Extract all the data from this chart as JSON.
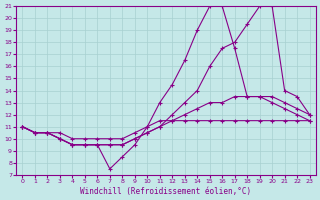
{
  "xlabel": "Windchill (Refroidissement éolien,°C)",
  "xlim": [
    -0.5,
    23.5
  ],
  "ylim": [
    7,
    21
  ],
  "yticks": [
    7,
    8,
    9,
    10,
    11,
    12,
    13,
    14,
    15,
    16,
    17,
    18,
    19,
    20,
    21
  ],
  "xticks": [
    0,
    1,
    2,
    3,
    4,
    5,
    6,
    7,
    8,
    9,
    10,
    11,
    12,
    13,
    14,
    15,
    16,
    17,
    18,
    19,
    20,
    21,
    22,
    23
  ],
  "background_color": "#c5e8e8",
  "grid_color": "#a8d0d0",
  "line_color": "#880088",
  "lines": [
    [
      11,
      10.5,
      10.5,
      10.5,
      10,
      10,
      10,
      10,
      10,
      10.5,
      11,
      11.5,
      11.5,
      11.5,
      11.5,
      11.5,
      11.5,
      11.5,
      11.5,
      11.5,
      11.5,
      11.5,
      11.5,
      11.5
    ],
    [
      11,
      10.5,
      10.5,
      10,
      9.5,
      9.5,
      9.5,
      9.5,
      9.5,
      10,
      10.5,
      11,
      11.5,
      12,
      12.5,
      13,
      13,
      13.5,
      13.5,
      13.5,
      13.5,
      13,
      12.5,
      12
    ],
    [
      11,
      10.5,
      10.5,
      10,
      9.5,
      9.5,
      9.5,
      9.5,
      9.5,
      10,
      10.5,
      11,
      12,
      13,
      14,
      16,
      17.5,
      18,
      19.5,
      21,
      21,
      14,
      13.5,
      12
    ],
    [
      11,
      10.5,
      10.5,
      10,
      9.5,
      9.5,
      9.5,
      7.5,
      8.5,
      9.5,
      11,
      13,
      14.5,
      16.5,
      19,
      21,
      21,
      17.5,
      13.5,
      13.5,
      13,
      12.5,
      12,
      11.5
    ]
  ]
}
